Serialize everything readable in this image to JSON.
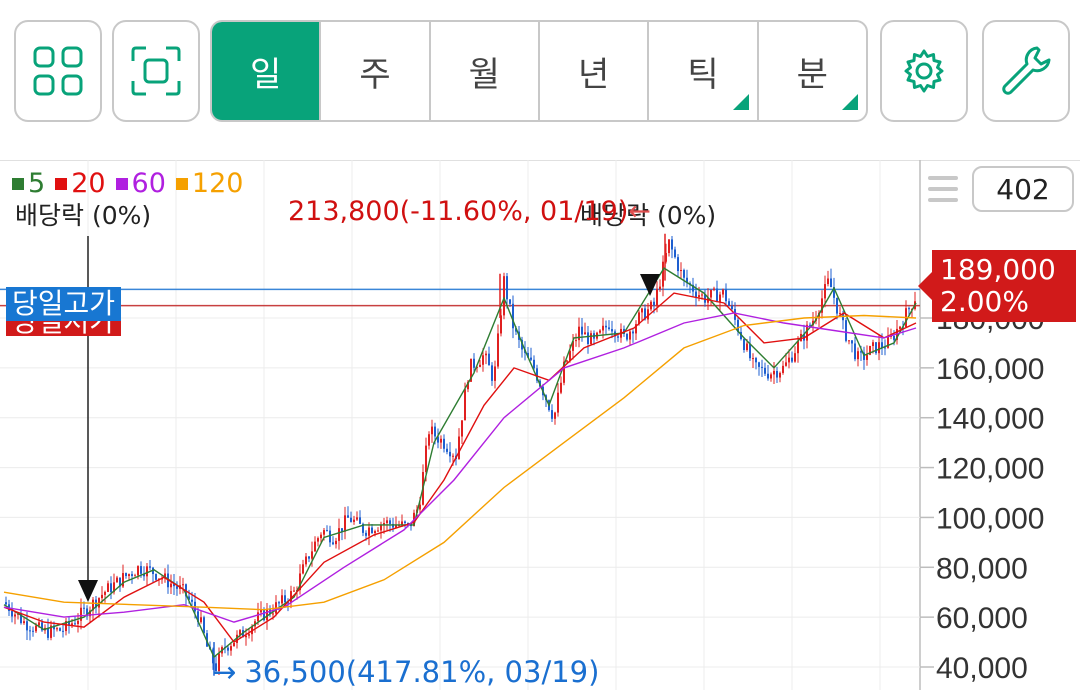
{
  "toolbar": {
    "tabs": [
      {
        "label": "일",
        "active": true,
        "corner": false
      },
      {
        "label": "주",
        "active": false,
        "corner": false
      },
      {
        "label": "월",
        "active": false,
        "corner": false
      },
      {
        "label": "년",
        "active": false,
        "corner": false
      },
      {
        "label": "틱",
        "active": false,
        "corner": true
      },
      {
        "label": "분",
        "active": false,
        "corner": true
      }
    ],
    "accent": "#08a37a"
  },
  "legend": [
    {
      "label": "5",
      "color": "#2e7d32"
    },
    {
      "label": "20",
      "color": "#e01010"
    },
    {
      "label": "60",
      "color": "#b020e0"
    },
    {
      "label": "120",
      "color": "#f5a000"
    }
  ],
  "count_value": "402",
  "annotations": {
    "dividend_1": "배당락 (0%)",
    "dividend_2": "배당락 (0%)",
    "high_label": "213,800(-11.60%, 01/19)",
    "low_label": "36,500(417.81%, 03/19)",
    "low_arrow": "→",
    "high_arrow": "←",
    "day_high_tag": "당일고가",
    "day_low_tag": "당일저가"
  },
  "price_tag": {
    "price": "189,000",
    "change": "2.00%"
  },
  "chart_data": {
    "type": "line",
    "series_style": "candlestick",
    "ylim": [
      32000,
      226000
    ],
    "yticks": [
      "180,000",
      "160,000",
      "140,000",
      "120,000",
      "100,000",
      "80,000",
      "60,000",
      "40,000"
    ],
    "ytick_values": [
      180000,
      160000,
      140000,
      120000,
      100000,
      80000,
      60000,
      40000
    ],
    "current_price": 189000,
    "day_high": 191500,
    "period_high": 213800,
    "period_low": 36500,
    "close_path": [
      [
        0,
        66000
      ],
      [
        20,
        58000
      ],
      [
        40,
        54000
      ],
      [
        60,
        55000
      ],
      [
        80,
        62000
      ],
      [
        100,
        70000
      ],
      [
        120,
        76000
      ],
      [
        135,
        80000
      ],
      [
        150,
        78000
      ],
      [
        165,
        74000
      ],
      [
        180,
        70000
      ],
      [
        195,
        60000
      ],
      [
        205,
        45000
      ],
      [
        212,
        40000
      ],
      [
        220,
        48000
      ],
      [
        235,
        52000
      ],
      [
        255,
        60000
      ],
      [
        275,
        65000
      ],
      [
        290,
        70000
      ],
      [
        305,
        85000
      ],
      [
        318,
        95000
      ],
      [
        330,
        92000
      ],
      [
        345,
        100000
      ],
      [
        360,
        95000
      ],
      [
        380,
        98000
      ],
      [
        395,
        97000
      ],
      [
        405,
        96000
      ],
      [
        415,
        105000
      ],
      [
        425,
        135000
      ],
      [
        440,
        130000
      ],
      [
        452,
        125000
      ],
      [
        465,
        160000
      ],
      [
        480,
        165000
      ],
      [
        490,
        155000
      ],
      [
        500,
        195000
      ],
      [
        510,
        175000
      ],
      [
        520,
        165000
      ],
      [
        530,
        160000
      ],
      [
        540,
        150000
      ],
      [
        550,
        140000
      ],
      [
        560,
        160000
      ],
      [
        575,
        175000
      ],
      [
        590,
        170000
      ],
      [
        605,
        178000
      ],
      [
        620,
        172000
      ],
      [
        635,
        180000
      ],
      [
        650,
        185000
      ],
      [
        665,
        210000
      ],
      [
        680,
        195000
      ],
      [
        700,
        188000
      ],
      [
        720,
        190000
      ],
      [
        735,
        175000
      ],
      [
        750,
        160000
      ],
      [
        765,
        158000
      ],
      [
        780,
        160000
      ],
      [
        795,
        170000
      ],
      [
        810,
        180000
      ],
      [
        825,
        195000
      ],
      [
        840,
        175000
      ],
      [
        855,
        163000
      ],
      [
        870,
        168000
      ],
      [
        885,
        170000
      ],
      [
        900,
        180000
      ],
      [
        912,
        189000
      ]
    ],
    "ma5": [
      [
        0,
        65000
      ],
      [
        40,
        55000
      ],
      [
        80,
        60000
      ],
      [
        120,
        74000
      ],
      [
        150,
        79000
      ],
      [
        180,
        71000
      ],
      [
        210,
        44000
      ],
      [
        240,
        54000
      ],
      [
        290,
        68000
      ],
      [
        320,
        92000
      ],
      [
        360,
        97000
      ],
      [
        410,
        97000
      ],
      [
        430,
        130000
      ],
      [
        470,
        158000
      ],
      [
        500,
        188000
      ],
      [
        520,
        168000
      ],
      [
        545,
        145000
      ],
      [
        570,
        172000
      ],
      [
        620,
        174000
      ],
      [
        660,
        200000
      ],
      [
        700,
        190000
      ],
      [
        740,
        172000
      ],
      [
        770,
        160000
      ],
      [
        810,
        178000
      ],
      [
        830,
        192000
      ],
      [
        860,
        165000
      ],
      [
        890,
        170000
      ],
      [
        912,
        186000
      ]
    ],
    "ma20": [
      [
        0,
        64000
      ],
      [
        40,
        58000
      ],
      [
        80,
        56000
      ],
      [
        120,
        68000
      ],
      [
        160,
        76000
      ],
      [
        200,
        66000
      ],
      [
        230,
        50000
      ],
      [
        270,
        60000
      ],
      [
        320,
        82000
      ],
      [
        370,
        93000
      ],
      [
        410,
        98000
      ],
      [
        440,
        115000
      ],
      [
        480,
        145000
      ],
      [
        510,
        160000
      ],
      [
        545,
        155000
      ],
      [
        580,
        168000
      ],
      [
        630,
        176000
      ],
      [
        670,
        190000
      ],
      [
        720,
        186000
      ],
      [
        760,
        170000
      ],
      [
        800,
        172000
      ],
      [
        840,
        182000
      ],
      [
        880,
        172000
      ],
      [
        912,
        178000
      ]
    ],
    "ma60": [
      [
        0,
        64000
      ],
      [
        60,
        60000
      ],
      [
        120,
        62000
      ],
      [
        180,
        65000
      ],
      [
        230,
        58000
      ],
      [
        280,
        64000
      ],
      [
        340,
        80000
      ],
      [
        400,
        95000
      ],
      [
        450,
        115000
      ],
      [
        500,
        140000
      ],
      [
        560,
        160000
      ],
      [
        620,
        168000
      ],
      [
        680,
        178000
      ],
      [
        730,
        182000
      ],
      [
        780,
        178000
      ],
      [
        830,
        175000
      ],
      [
        880,
        172000
      ],
      [
        912,
        176000
      ]
    ],
    "ma120": [
      [
        0,
        70000
      ],
      [
        60,
        66000
      ],
      [
        130,
        65000
      ],
      [
        200,
        64000
      ],
      [
        260,
        63000
      ],
      [
        320,
        66000
      ],
      [
        380,
        75000
      ],
      [
        440,
        90000
      ],
      [
        500,
        112000
      ],
      [
        560,
        130000
      ],
      [
        620,
        148000
      ],
      [
        680,
        168000
      ],
      [
        740,
        177000
      ],
      [
        800,
        180000
      ],
      [
        860,
        181000
      ],
      [
        912,
        180000
      ]
    ]
  }
}
